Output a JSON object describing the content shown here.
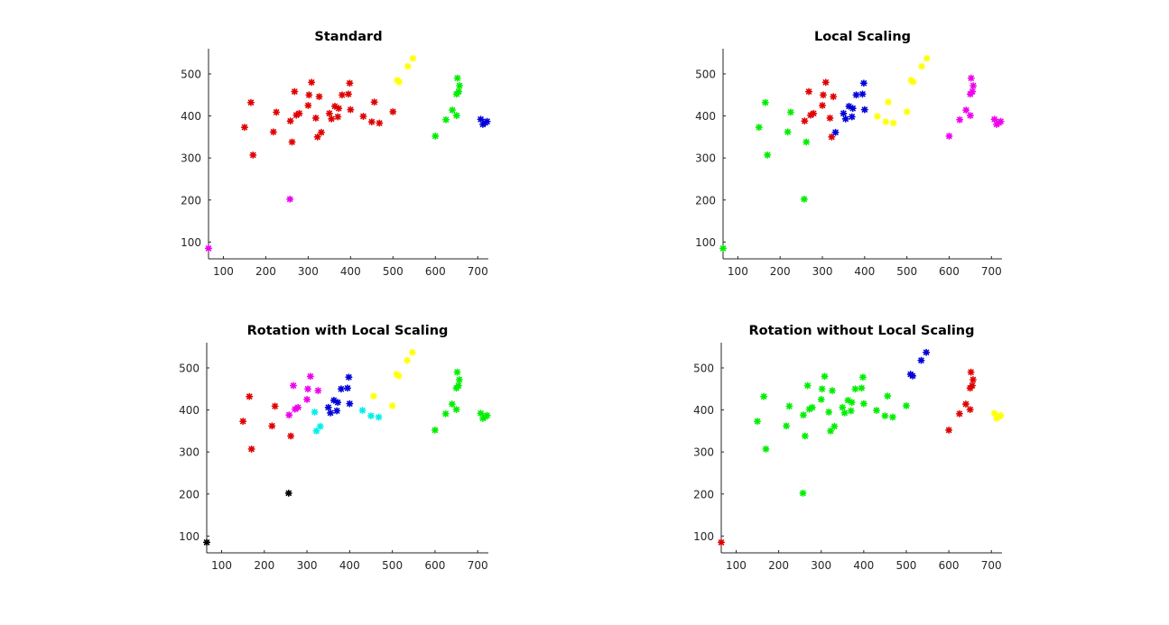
{
  "colors": {
    "red": "#e00000",
    "green": "#00ee00",
    "blue": "#0000d8",
    "yellow": "#ffff00",
    "magenta": "#ee00ee",
    "cyan": "#00eeee",
    "black": "#000000"
  },
  "chart_data": [
    {
      "type": "scatter",
      "title": "Standard",
      "xlabel": "",
      "ylabel": "",
      "xlim": [
        65,
        725
      ],
      "ylim": [
        60,
        560
      ],
      "xticks": [
        100,
        200,
        300,
        400,
        500,
        600,
        700
      ],
      "yticks": [
        100,
        200,
        300,
        400,
        500
      ],
      "grid": false,
      "marker": "asterisk",
      "points": [
        {
          "x": 65,
          "y": 85,
          "color": "magenta"
        },
        {
          "x": 257,
          "y": 202,
          "color": "magenta"
        },
        {
          "x": 150,
          "y": 373,
          "color": "red"
        },
        {
          "x": 165,
          "y": 432,
          "color": "red"
        },
        {
          "x": 170,
          "y": 307,
          "color": "red"
        },
        {
          "x": 218,
          "y": 362,
          "color": "red"
        },
        {
          "x": 225,
          "y": 409,
          "color": "red"
        },
        {
          "x": 258,
          "y": 388,
          "color": "red"
        },
        {
          "x": 262,
          "y": 338,
          "color": "red"
        },
        {
          "x": 268,
          "y": 458,
          "color": "red"
        },
        {
          "x": 272,
          "y": 402,
          "color": "red"
        },
        {
          "x": 279,
          "y": 406,
          "color": "red"
        },
        {
          "x": 300,
          "y": 425,
          "color": "red"
        },
        {
          "x": 302,
          "y": 450,
          "color": "red"
        },
        {
          "x": 308,
          "y": 480,
          "color": "red"
        },
        {
          "x": 318,
          "y": 395,
          "color": "red"
        },
        {
          "x": 322,
          "y": 350,
          "color": "red"
        },
        {
          "x": 326,
          "y": 446,
          "color": "red"
        },
        {
          "x": 331,
          "y": 361,
          "color": "red"
        },
        {
          "x": 350,
          "y": 406,
          "color": "red"
        },
        {
          "x": 355,
          "y": 393,
          "color": "red"
        },
        {
          "x": 363,
          "y": 423,
          "color": "red"
        },
        {
          "x": 370,
          "y": 398,
          "color": "red"
        },
        {
          "x": 372,
          "y": 418,
          "color": "red"
        },
        {
          "x": 380,
          "y": 450,
          "color": "red"
        },
        {
          "x": 395,
          "y": 452,
          "color": "red"
        },
        {
          "x": 398,
          "y": 478,
          "color": "red"
        },
        {
          "x": 400,
          "y": 415,
          "color": "red"
        },
        {
          "x": 430,
          "y": 399,
          "color": "red"
        },
        {
          "x": 450,
          "y": 386,
          "color": "red"
        },
        {
          "x": 456,
          "y": 433,
          "color": "red"
        },
        {
          "x": 468,
          "y": 383,
          "color": "red"
        },
        {
          "x": 500,
          "y": 410,
          "color": "red"
        },
        {
          "x": 510,
          "y": 485,
          "color": "yellow"
        },
        {
          "x": 515,
          "y": 481,
          "color": "yellow"
        },
        {
          "x": 535,
          "y": 518,
          "color": "yellow"
        },
        {
          "x": 547,
          "y": 537,
          "color": "yellow"
        },
        {
          "x": 600,
          "y": 352,
          "color": "green"
        },
        {
          "x": 625,
          "y": 391,
          "color": "green"
        },
        {
          "x": 640,
          "y": 414,
          "color": "green"
        },
        {
          "x": 650,
          "y": 401,
          "color": "green"
        },
        {
          "x": 650,
          "y": 452,
          "color": "green"
        },
        {
          "x": 652,
          "y": 490,
          "color": "green"
        },
        {
          "x": 655,
          "y": 458,
          "color": "green"
        },
        {
          "x": 657,
          "y": 472,
          "color": "green"
        },
        {
          "x": 707,
          "y": 392,
          "color": "blue"
        },
        {
          "x": 712,
          "y": 380,
          "color": "blue"
        },
        {
          "x": 718,
          "y": 384,
          "color": "blue"
        },
        {
          "x": 722,
          "y": 387,
          "color": "blue"
        }
      ]
    },
    {
      "type": "scatter",
      "title": "Local Scaling",
      "xlabel": "",
      "ylabel": "",
      "xlim": [
        65,
        725
      ],
      "ylim": [
        60,
        560
      ],
      "xticks": [
        100,
        200,
        300,
        400,
        500,
        600,
        700
      ],
      "yticks": [
        100,
        200,
        300,
        400,
        500
      ],
      "grid": false,
      "marker": "asterisk",
      "points": [
        {
          "x": 65,
          "y": 85,
          "color": "green"
        },
        {
          "x": 257,
          "y": 202,
          "color": "green"
        },
        {
          "x": 150,
          "y": 373,
          "color": "green"
        },
        {
          "x": 165,
          "y": 432,
          "color": "green"
        },
        {
          "x": 170,
          "y": 307,
          "color": "green"
        },
        {
          "x": 218,
          "y": 362,
          "color": "green"
        },
        {
          "x": 225,
          "y": 409,
          "color": "green"
        },
        {
          "x": 258,
          "y": 388,
          "color": "red"
        },
        {
          "x": 262,
          "y": 338,
          "color": "green"
        },
        {
          "x": 268,
          "y": 458,
          "color": "red"
        },
        {
          "x": 272,
          "y": 402,
          "color": "red"
        },
        {
          "x": 279,
          "y": 406,
          "color": "red"
        },
        {
          "x": 300,
          "y": 425,
          "color": "red"
        },
        {
          "x": 302,
          "y": 450,
          "color": "red"
        },
        {
          "x": 308,
          "y": 480,
          "color": "red"
        },
        {
          "x": 318,
          "y": 395,
          "color": "red"
        },
        {
          "x": 322,
          "y": 350,
          "color": "red"
        },
        {
          "x": 326,
          "y": 446,
          "color": "red"
        },
        {
          "x": 331,
          "y": 361,
          "color": "blue"
        },
        {
          "x": 350,
          "y": 406,
          "color": "blue"
        },
        {
          "x": 355,
          "y": 393,
          "color": "blue"
        },
        {
          "x": 363,
          "y": 423,
          "color": "blue"
        },
        {
          "x": 370,
          "y": 398,
          "color": "blue"
        },
        {
          "x": 372,
          "y": 418,
          "color": "blue"
        },
        {
          "x": 380,
          "y": 450,
          "color": "blue"
        },
        {
          "x": 395,
          "y": 452,
          "color": "blue"
        },
        {
          "x": 398,
          "y": 478,
          "color": "blue"
        },
        {
          "x": 400,
          "y": 415,
          "color": "blue"
        },
        {
          "x": 430,
          "y": 399,
          "color": "yellow"
        },
        {
          "x": 450,
          "y": 386,
          "color": "yellow"
        },
        {
          "x": 456,
          "y": 433,
          "color": "yellow"
        },
        {
          "x": 468,
          "y": 383,
          "color": "yellow"
        },
        {
          "x": 500,
          "y": 410,
          "color": "yellow"
        },
        {
          "x": 510,
          "y": 485,
          "color": "yellow"
        },
        {
          "x": 515,
          "y": 481,
          "color": "yellow"
        },
        {
          "x": 535,
          "y": 518,
          "color": "yellow"
        },
        {
          "x": 547,
          "y": 537,
          "color": "yellow"
        },
        {
          "x": 600,
          "y": 352,
          "color": "magenta"
        },
        {
          "x": 625,
          "y": 391,
          "color": "magenta"
        },
        {
          "x": 640,
          "y": 414,
          "color": "magenta"
        },
        {
          "x": 650,
          "y": 401,
          "color": "magenta"
        },
        {
          "x": 650,
          "y": 452,
          "color": "magenta"
        },
        {
          "x": 652,
          "y": 490,
          "color": "magenta"
        },
        {
          "x": 655,
          "y": 458,
          "color": "magenta"
        },
        {
          "x": 657,
          "y": 472,
          "color": "magenta"
        },
        {
          "x": 707,
          "y": 392,
          "color": "magenta"
        },
        {
          "x": 712,
          "y": 380,
          "color": "magenta"
        },
        {
          "x": 718,
          "y": 384,
          "color": "magenta"
        },
        {
          "x": 722,
          "y": 387,
          "color": "magenta"
        }
      ]
    },
    {
      "type": "scatter",
      "title": "Rotation with Local Scaling",
      "xlabel": "",
      "ylabel": "",
      "xlim": [
        65,
        725
      ],
      "ylim": [
        60,
        560
      ],
      "xticks": [
        100,
        200,
        300,
        400,
        500,
        600,
        700
      ],
      "yticks": [
        100,
        200,
        300,
        400,
        500
      ],
      "grid": false,
      "marker": "asterisk",
      "points": [
        {
          "x": 65,
          "y": 85,
          "color": "black"
        },
        {
          "x": 257,
          "y": 202,
          "color": "black"
        },
        {
          "x": 150,
          "y": 373,
          "color": "red"
        },
        {
          "x": 165,
          "y": 432,
          "color": "red"
        },
        {
          "x": 170,
          "y": 307,
          "color": "red"
        },
        {
          "x": 218,
          "y": 362,
          "color": "red"
        },
        {
          "x": 225,
          "y": 409,
          "color": "red"
        },
        {
          "x": 258,
          "y": 388,
          "color": "magenta"
        },
        {
          "x": 262,
          "y": 338,
          "color": "red"
        },
        {
          "x": 268,
          "y": 458,
          "color": "magenta"
        },
        {
          "x": 272,
          "y": 402,
          "color": "magenta"
        },
        {
          "x": 279,
          "y": 406,
          "color": "magenta"
        },
        {
          "x": 300,
          "y": 425,
          "color": "magenta"
        },
        {
          "x": 302,
          "y": 450,
          "color": "magenta"
        },
        {
          "x": 308,
          "y": 480,
          "color": "magenta"
        },
        {
          "x": 318,
          "y": 395,
          "color": "cyan"
        },
        {
          "x": 322,
          "y": 350,
          "color": "cyan"
        },
        {
          "x": 326,
          "y": 446,
          "color": "magenta"
        },
        {
          "x": 331,
          "y": 361,
          "color": "cyan"
        },
        {
          "x": 350,
          "y": 406,
          "color": "blue"
        },
        {
          "x": 355,
          "y": 393,
          "color": "blue"
        },
        {
          "x": 363,
          "y": 423,
          "color": "blue"
        },
        {
          "x": 370,
          "y": 398,
          "color": "blue"
        },
        {
          "x": 372,
          "y": 418,
          "color": "blue"
        },
        {
          "x": 380,
          "y": 450,
          "color": "blue"
        },
        {
          "x": 395,
          "y": 452,
          "color": "blue"
        },
        {
          "x": 398,
          "y": 478,
          "color": "blue"
        },
        {
          "x": 400,
          "y": 415,
          "color": "blue"
        },
        {
          "x": 430,
          "y": 399,
          "color": "cyan"
        },
        {
          "x": 450,
          "y": 386,
          "color": "cyan"
        },
        {
          "x": 456,
          "y": 433,
          "color": "yellow"
        },
        {
          "x": 468,
          "y": 383,
          "color": "cyan"
        },
        {
          "x": 500,
          "y": 410,
          "color": "yellow"
        },
        {
          "x": 510,
          "y": 485,
          "color": "yellow"
        },
        {
          "x": 515,
          "y": 481,
          "color": "yellow"
        },
        {
          "x": 535,
          "y": 518,
          "color": "yellow"
        },
        {
          "x": 547,
          "y": 537,
          "color": "yellow"
        },
        {
          "x": 600,
          "y": 352,
          "color": "green"
        },
        {
          "x": 625,
          "y": 391,
          "color": "green"
        },
        {
          "x": 640,
          "y": 414,
          "color": "green"
        },
        {
          "x": 650,
          "y": 401,
          "color": "green"
        },
        {
          "x": 650,
          "y": 452,
          "color": "green"
        },
        {
          "x": 652,
          "y": 490,
          "color": "green"
        },
        {
          "x": 655,
          "y": 458,
          "color": "green"
        },
        {
          "x": 657,
          "y": 472,
          "color": "green"
        },
        {
          "x": 707,
          "y": 392,
          "color": "green"
        },
        {
          "x": 712,
          "y": 380,
          "color": "green"
        },
        {
          "x": 718,
          "y": 384,
          "color": "green"
        },
        {
          "x": 722,
          "y": 387,
          "color": "green"
        }
      ]
    },
    {
      "type": "scatter",
      "title": "Rotation without Local Scaling",
      "xlabel": "",
      "ylabel": "",
      "xlim": [
        65,
        725
      ],
      "ylim": [
        60,
        560
      ],
      "xticks": [
        100,
        200,
        300,
        400,
        500,
        600,
        700
      ],
      "yticks": [
        100,
        200,
        300,
        400,
        500
      ],
      "grid": false,
      "marker": "asterisk",
      "points": [
        {
          "x": 65,
          "y": 85,
          "color": "red"
        },
        {
          "x": 257,
          "y": 202,
          "color": "green"
        },
        {
          "x": 150,
          "y": 373,
          "color": "green"
        },
        {
          "x": 165,
          "y": 432,
          "color": "green"
        },
        {
          "x": 170,
          "y": 307,
          "color": "green"
        },
        {
          "x": 218,
          "y": 362,
          "color": "green"
        },
        {
          "x": 225,
          "y": 409,
          "color": "green"
        },
        {
          "x": 258,
          "y": 388,
          "color": "green"
        },
        {
          "x": 262,
          "y": 338,
          "color": "green"
        },
        {
          "x": 268,
          "y": 458,
          "color": "green"
        },
        {
          "x": 272,
          "y": 402,
          "color": "green"
        },
        {
          "x": 279,
          "y": 406,
          "color": "green"
        },
        {
          "x": 300,
          "y": 425,
          "color": "green"
        },
        {
          "x": 302,
          "y": 450,
          "color": "green"
        },
        {
          "x": 308,
          "y": 480,
          "color": "green"
        },
        {
          "x": 318,
          "y": 395,
          "color": "green"
        },
        {
          "x": 322,
          "y": 350,
          "color": "green"
        },
        {
          "x": 326,
          "y": 446,
          "color": "green"
        },
        {
          "x": 331,
          "y": 361,
          "color": "green"
        },
        {
          "x": 350,
          "y": 406,
          "color": "green"
        },
        {
          "x": 355,
          "y": 393,
          "color": "green"
        },
        {
          "x": 363,
          "y": 423,
          "color": "green"
        },
        {
          "x": 370,
          "y": 398,
          "color": "green"
        },
        {
          "x": 372,
          "y": 418,
          "color": "green"
        },
        {
          "x": 380,
          "y": 450,
          "color": "green"
        },
        {
          "x": 395,
          "y": 452,
          "color": "green"
        },
        {
          "x": 398,
          "y": 478,
          "color": "green"
        },
        {
          "x": 400,
          "y": 415,
          "color": "green"
        },
        {
          "x": 430,
          "y": 399,
          "color": "green"
        },
        {
          "x": 450,
          "y": 386,
          "color": "green"
        },
        {
          "x": 456,
          "y": 433,
          "color": "green"
        },
        {
          "x": 468,
          "y": 383,
          "color": "green"
        },
        {
          "x": 500,
          "y": 410,
          "color": "green"
        },
        {
          "x": 510,
          "y": 485,
          "color": "blue"
        },
        {
          "x": 515,
          "y": 481,
          "color": "blue"
        },
        {
          "x": 535,
          "y": 518,
          "color": "blue"
        },
        {
          "x": 547,
          "y": 537,
          "color": "blue"
        },
        {
          "x": 600,
          "y": 352,
          "color": "red"
        },
        {
          "x": 625,
          "y": 391,
          "color": "red"
        },
        {
          "x": 640,
          "y": 414,
          "color": "red"
        },
        {
          "x": 650,
          "y": 401,
          "color": "red"
        },
        {
          "x": 650,
          "y": 452,
          "color": "red"
        },
        {
          "x": 652,
          "y": 490,
          "color": "red"
        },
        {
          "x": 655,
          "y": 458,
          "color": "red"
        },
        {
          "x": 657,
          "y": 472,
          "color": "red"
        },
        {
          "x": 707,
          "y": 392,
          "color": "yellow"
        },
        {
          "x": 712,
          "y": 380,
          "color": "yellow"
        },
        {
          "x": 718,
          "y": 384,
          "color": "yellow"
        },
        {
          "x": 722,
          "y": 387,
          "color": "yellow"
        }
      ]
    }
  ]
}
